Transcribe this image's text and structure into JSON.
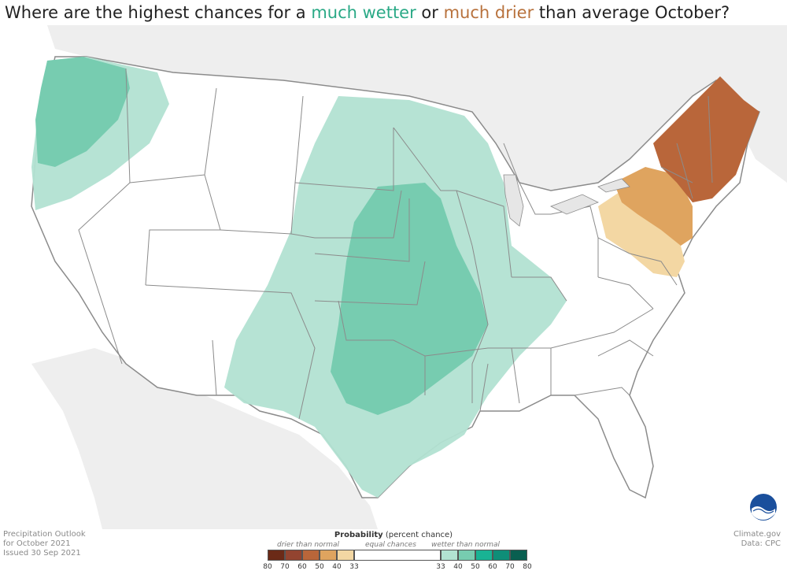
{
  "title": {
    "prefix": "Where are the highest chances for a ",
    "wet": "much wetter",
    "middle": " or ",
    "dry": "much drier",
    "suffix": " than average October?"
  },
  "colors": {
    "wet_33_40": "#b2e2d2",
    "wet_40_50": "#77ccb0",
    "dry_33_40": "#f3d7a3",
    "dry_40_50": "#dfa45f",
    "dry_50_60": "#b9663a",
    "state_line": "#8b8b8b",
    "land_bg": "#eeeeee"
  },
  "footer_left": {
    "line1": "Precipitation Outlook",
    "line2": "for October 2021",
    "line3": "Issued 30 Sep 2021"
  },
  "footer_right": {
    "line1": "Climate.gov",
    "line2": "Data: CPC"
  },
  "legend": {
    "title_bold": "Probability",
    "title_rest": " (percent chance)",
    "drier_label": "drier than normal",
    "equal_label": "equal chances",
    "wetter_label": "wetter than normal",
    "ticks_dry": [
      "80",
      "70",
      "60",
      "50",
      "40",
      "33"
    ],
    "ticks_wet": [
      "33",
      "40",
      "50",
      "60",
      "70",
      "80"
    ],
    "dry_colors": [
      "#6b2a17",
      "#934430",
      "#b9663a",
      "#dfa45f",
      "#f3d7a3"
    ],
    "wet_colors": [
      "#b2e2d2",
      "#77ccb0",
      "#19b394",
      "#0f8e78",
      "#095f50"
    ]
  },
  "logo": "noaa-logo"
}
